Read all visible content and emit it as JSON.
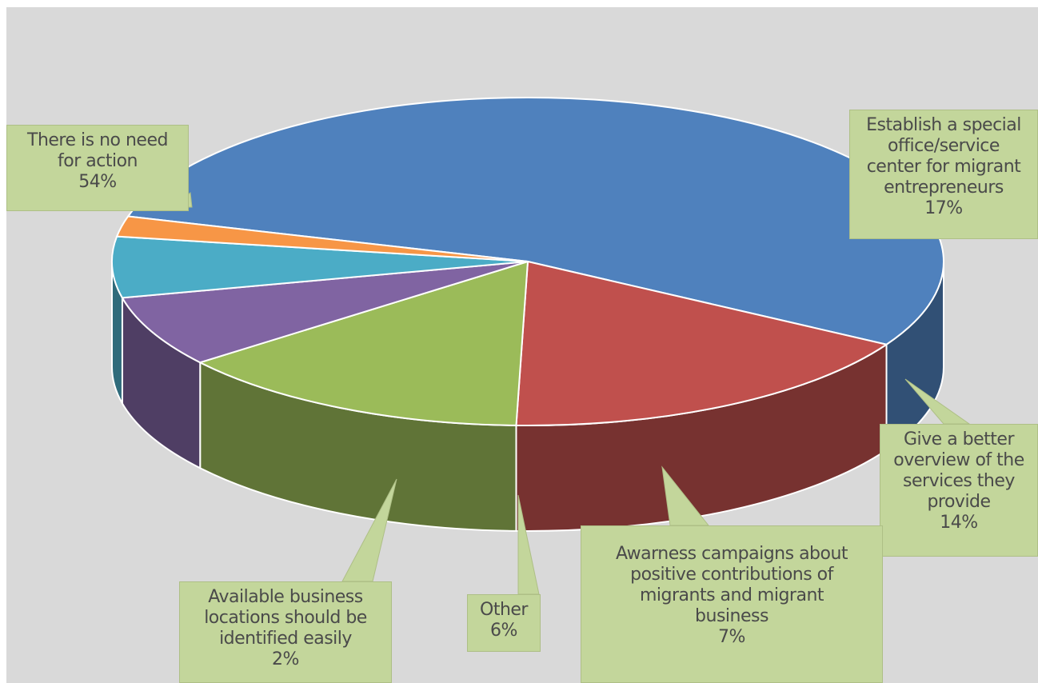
{
  "chart_data": {
    "type": "pie",
    "title": "",
    "slices": [
      {
        "label": "There is no need for action",
        "value": 54,
        "percent_text": "54%",
        "color": "#4f81bd"
      },
      {
        "label": "Establish a special office/service center for migrant entrepreneurs",
        "value": 17,
        "percent_text": "17%",
        "color": "#c0504d"
      },
      {
        "label": "Give a better overview of the services they provide",
        "value": 14,
        "percent_text": "14%",
        "color": "#9bbb59"
      },
      {
        "label": "Awarness campaigns about positive contributions of migrants and migrant business",
        "value": 7,
        "percent_text": "7%",
        "color": "#8064a2"
      },
      {
        "label": "Other",
        "value": 6,
        "percent_text": "6%",
        "color": "#4bacc6"
      },
      {
        "label": "Available business locations should be identified easily",
        "value": 2,
        "percent_text": "2%",
        "color": "#f79646"
      }
    ],
    "label_fill": "#c3d69b",
    "background": "#d9d9d9"
  },
  "labels": {
    "no_action": {
      "line1": "There is no need",
      "line2": "for action",
      "pct": "54%"
    },
    "establish": {
      "line1": "Establish a special",
      "line2": "office/service",
      "line3": "center for migrant",
      "line4": "entrepreneurs",
      "pct": "17%"
    },
    "overview": {
      "line1": "Give a better",
      "line2": "overview of the",
      "line3": "services they",
      "line4": "provide",
      "pct": "14%"
    },
    "awareness": {
      "line1": "Awarness campaigns about",
      "line2": "positive contributions of",
      "line3": "migrants and migrant",
      "line4": "business",
      "pct": "7%"
    },
    "other": {
      "line1": "Other",
      "pct": "6%"
    },
    "locations": {
      "line1": "Available business",
      "line2": "locations should be",
      "line3": "identified easily",
      "pct": "2%"
    }
  }
}
